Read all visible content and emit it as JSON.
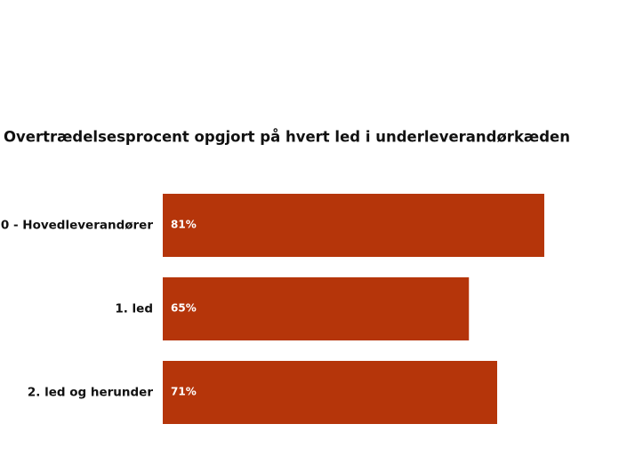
{
  "chart_data": {
    "type": "bar",
    "orientation": "horizontal",
    "title": "Overtrædelsesprocent opgjort på hvert led i underleverandørkæden",
    "categories": [
      "0 - Hovedleverandører",
      "1. led",
      "2. led og herunder"
    ],
    "values": [
      81,
      65,
      71
    ],
    "value_labels": [
      "81%",
      "65%",
      "71%"
    ],
    "color": "#b5350a"
  }
}
